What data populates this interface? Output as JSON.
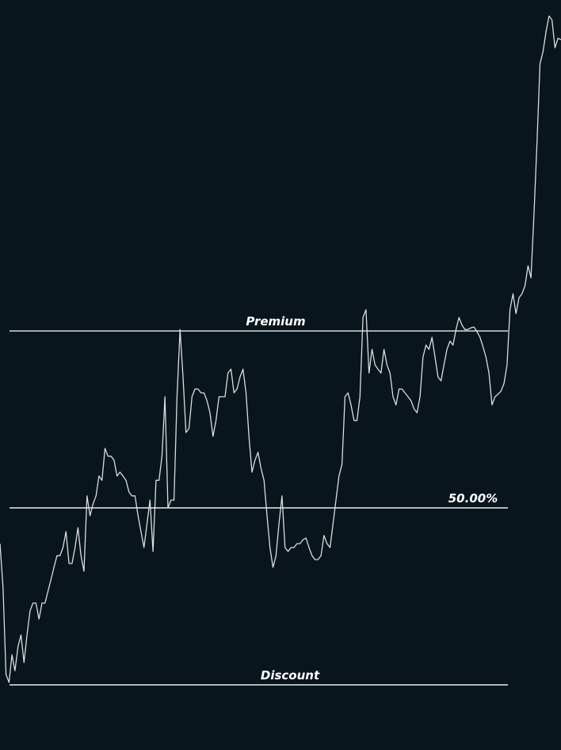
{
  "chart_data": {
    "type": "line",
    "color": "#dcdcdc",
    "level_color": "#ffffff",
    "background": "#08151d",
    "ylim": [
      -18.4,
      193.5
    ],
    "levels": [
      {
        "value": 100,
        "label": "Premium"
      },
      {
        "value": 50,
        "label": "50.00%"
      },
      {
        "value": 0,
        "label": "Discount"
      }
    ],
    "values": [
      39.9,
      27.6,
      2.9,
      0.7,
      8.5,
      4.0,
      10.8,
      14.1,
      6.3,
      14.1,
      20.9,
      23.1,
      23.1,
      18.6,
      23.1,
      23.1,
      26.5,
      29.8,
      33.2,
      36.5,
      36.5,
      38.8,
      43.3,
      34.3,
      34.3,
      38.8,
      44.4,
      36.5,
      32.1,
      53.4,
      47.8,
      51.1,
      53.4,
      59.0,
      57.8,
      66.8,
      64.6,
      64.6,
      63.5,
      59.0,
      60.1,
      59.0,
      57.8,
      54.5,
      53.4,
      53.4,
      47.8,
      43.3,
      38.8,
      45.5,
      52.2,
      37.7,
      57.8,
      57.8,
      64.6,
      81.4,
      50.0,
      52.2,
      52.2,
      81.4,
      100.4,
      87.0,
      71.3,
      72.4,
      81.4,
      83.6,
      83.6,
      82.5,
      82.5,
      80.3,
      76.9,
      70.2,
      74.7,
      81.4,
      81.4,
      81.4,
      88.1,
      89.2,
      82.5,
      83.6,
      87.0,
      89.2,
      82.5,
      70.2,
      60.1,
      63.5,
      65.7,
      61.2,
      57.8,
      47.8,
      38.8,
      33.2,
      36.5,
      45.5,
      53.4,
      38.8,
      37.7,
      38.8,
      38.8,
      39.9,
      39.9,
      41.0,
      41.5,
      38.8,
      36.5,
      35.4,
      35.4,
      36.5,
      42.2,
      39.9,
      38.8,
      45.5,
      52.2,
      59.0,
      62.3,
      81.4,
      82.5,
      79.1,
      74.7,
      74.7,
      81.4,
      103.8,
      106.0,
      88.1,
      94.8,
      90.4,
      89.2,
      88.1,
      94.8,
      90.4,
      88.1,
      81.4,
      79.1,
      83.6,
      83.6,
      82.5,
      81.4,
      80.3,
      78.0,
      76.9,
      81.4,
      92.6,
      96.0,
      94.8,
      98.2,
      92.6,
      87.0,
      85.9,
      90.4,
      94.8,
      97.1,
      96.0,
      100.4,
      103.8,
      101.6,
      100.4,
      100.4,
      100.9,
      101.1,
      99.8,
      98.2,
      95.5,
      92.6,
      88.1,
      79.1,
      81.4,
      82.1,
      83.0,
      85.2,
      90.4,
      106.0,
      110.5,
      104.9,
      109.4,
      110.5,
      112.8,
      118.4,
      115.0,
      132.9,
      153.1,
      175.5,
      178.9,
      184.5,
      189.0,
      187.9,
      180.0,
      182.7,
      182.3
    ]
  }
}
